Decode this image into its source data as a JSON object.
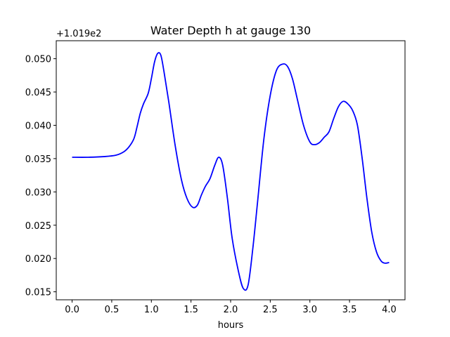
{
  "chart_data": {
    "type": "line",
    "title": "Water Depth h at gauge 130",
    "xlabel": "hours",
    "ylabel": "",
    "y_offset_label": "+1.019e2",
    "xlim": [
      -0.2,
      4.2
    ],
    "ylim": [
      0.0138,
      0.0527
    ],
    "xticks": [
      0.0,
      0.5,
      1.0,
      1.5,
      2.0,
      2.5,
      3.0,
      3.5,
      4.0
    ],
    "xtick_labels": [
      "0.0",
      "0.5",
      "1.0",
      "1.5",
      "2.0",
      "2.5",
      "3.0",
      "3.5",
      "4.0"
    ],
    "yticks": [
      0.015,
      0.02,
      0.025,
      0.03,
      0.035,
      0.04,
      0.045,
      0.05
    ],
    "ytick_labels": [
      "0.015",
      "0.020",
      "0.025",
      "0.030",
      "0.035",
      "0.040",
      "0.045",
      "0.050"
    ],
    "grid": false,
    "series": [
      {
        "color": "#0000ff",
        "x": [
          0.0,
          0.2,
          0.4,
          0.55,
          0.65,
          0.72,
          0.78,
          0.82,
          0.86,
          0.9,
          0.96,
          1.0,
          1.04,
          1.08,
          1.12,
          1.16,
          1.22,
          1.3,
          1.38,
          1.45,
          1.52,
          1.58,
          1.63,
          1.68,
          1.74,
          1.8,
          1.85,
          1.9,
          1.96,
          2.02,
          2.1,
          2.16,
          2.22,
          2.28,
          2.34,
          2.42,
          2.5,
          2.58,
          2.66,
          2.72,
          2.78,
          2.84,
          2.92,
          3.0,
          3.06,
          3.12,
          3.18,
          3.24,
          3.3,
          3.36,
          3.42,
          3.48,
          3.54,
          3.6,
          3.66,
          3.72,
          3.78,
          3.84,
          3.9,
          3.95,
          4.0
        ],
        "y": [
          0.0352,
          0.0352,
          0.0353,
          0.0355,
          0.036,
          0.0368,
          0.038,
          0.0398,
          0.0418,
          0.0432,
          0.0448,
          0.047,
          0.0495,
          0.0508,
          0.0505,
          0.048,
          0.0435,
          0.037,
          0.0318,
          0.029,
          0.0277,
          0.028,
          0.0295,
          0.0308,
          0.032,
          0.034,
          0.0352,
          0.034,
          0.029,
          0.023,
          0.018,
          0.0155,
          0.016,
          0.0215,
          0.0285,
          0.038,
          0.0445,
          0.0483,
          0.0492,
          0.0488,
          0.047,
          0.044,
          0.04,
          0.0375,
          0.0371,
          0.0374,
          0.0382,
          0.039,
          0.041,
          0.0428,
          0.0436,
          0.0432,
          0.0422,
          0.04,
          0.035,
          0.029,
          0.024,
          0.021,
          0.0196,
          0.0193,
          0.0194
        ]
      }
    ]
  }
}
